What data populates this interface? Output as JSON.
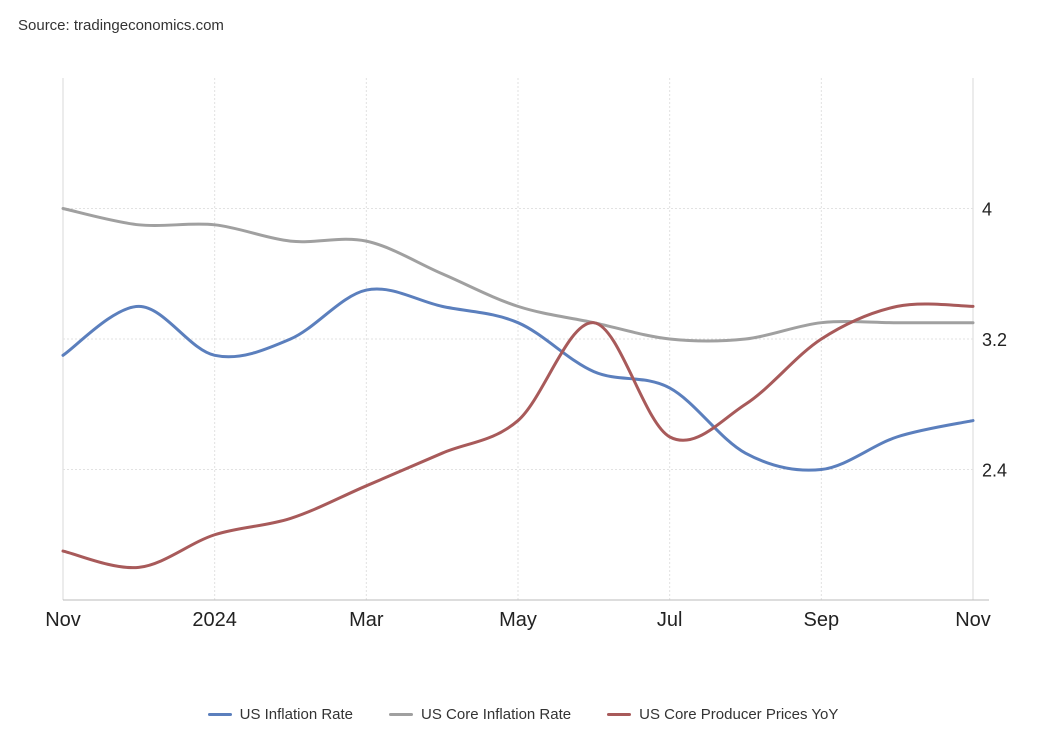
{
  "source": "Source: tradingeconomics.com",
  "chart_data": {
    "type": "line",
    "title": "",
    "xlabel": "",
    "ylabel": "",
    "x": [
      "2023-11",
      "2023-12",
      "2024-01",
      "2024-02",
      "2024-03",
      "2024-04",
      "2024-05",
      "2024-06",
      "2024-07",
      "2024-08",
      "2024-09",
      "2024-10",
      "2024-11"
    ],
    "x_tick_labels": [
      {
        "x": "2023-11",
        "label": "Nov"
      },
      {
        "x": "2024-01",
        "label": "2024"
      },
      {
        "x": "2024-03",
        "label": "Mar"
      },
      {
        "x": "2024-05",
        "label": "May"
      },
      {
        "x": "2024-07",
        "label": "Jul"
      },
      {
        "x": "2024-09",
        "label": "Sep"
      },
      {
        "x": "2024-11",
        "label": "Nov"
      }
    ],
    "y_ticks": [
      2.4,
      3.2,
      4
    ],
    "ylim": [
      1.6,
      4.8
    ],
    "y_axis_position": "right",
    "grid": true,
    "legend_position": "bottom",
    "series": [
      {
        "name": "US Inflation Rate",
        "color": "#5b7fbd",
        "values": [
          3.1,
          3.4,
          3.1,
          3.2,
          3.5,
          3.4,
          3.3,
          3.0,
          2.9,
          2.5,
          2.4,
          2.6,
          2.7
        ]
      },
      {
        "name": "US Core Inflation Rate",
        "color": "#a0a0a0",
        "values": [
          4.0,
          3.9,
          3.9,
          3.8,
          3.8,
          3.6,
          3.4,
          3.3,
          3.2,
          3.2,
          3.3,
          3.3,
          3.3
        ]
      },
      {
        "name": "US Core Producer Prices YoY",
        "color": "#a85a5a",
        "values": [
          1.9,
          1.8,
          2.0,
          2.1,
          2.3,
          2.5,
          2.7,
          3.3,
          2.6,
          2.8,
          3.2,
          3.4,
          3.4
        ]
      }
    ]
  }
}
